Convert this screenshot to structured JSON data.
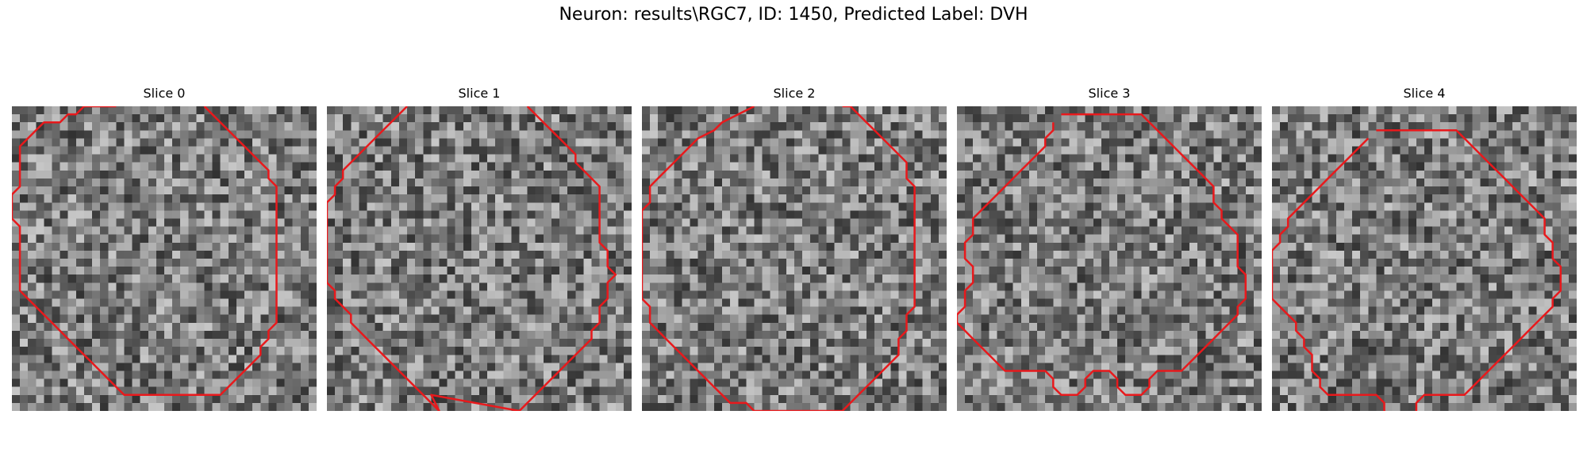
{
  "figure": {
    "title": "Neuron: results\\RGC7, ID: 1450, Predicted Label: DVH"
  },
  "panels": [
    {
      "title": "Slice 0",
      "seed": 11,
      "contour": [
        [
          13,
          0
        ],
        [
          9,
          0
        ],
        [
          8,
          1
        ],
        [
          7,
          1
        ],
        [
          6,
          2
        ],
        [
          4,
          2
        ],
        [
          3,
          3
        ],
        [
          2,
          4
        ],
        [
          1,
          5
        ],
        [
          1,
          10
        ],
        [
          0,
          11
        ],
        [
          0,
          14
        ],
        [
          1,
          15
        ],
        [
          1,
          23
        ],
        [
          2,
          24
        ],
        [
          3,
          25
        ],
        [
          4,
          26
        ],
        [
          5,
          27
        ],
        [
          6,
          28
        ],
        [
          7,
          29
        ],
        [
          8,
          30
        ],
        [
          9,
          31
        ],
        [
          10,
          32
        ],
        [
          11,
          33
        ],
        [
          12,
          34
        ],
        [
          13,
          35
        ],
        [
          14,
          36
        ],
        [
          26,
          36
        ],
        [
          27,
          35
        ],
        [
          28,
          34
        ],
        [
          29,
          33
        ],
        [
          30,
          32
        ],
        [
          31,
          31
        ],
        [
          31,
          30
        ],
        [
          32,
          29
        ],
        [
          32,
          28
        ],
        [
          33,
          27
        ],
        [
          33,
          10
        ],
        [
          32,
          9
        ],
        [
          32,
          8
        ],
        [
          31,
          7
        ],
        [
          30,
          6
        ],
        [
          29,
          5
        ],
        [
          28,
          4
        ],
        [
          27,
          3
        ],
        [
          26,
          2
        ],
        [
          25,
          1
        ],
        [
          24,
          0
        ]
      ]
    },
    {
      "title": "Slice 1",
      "seed": 23,
      "contour": [
        [
          10,
          0
        ],
        [
          9,
          1
        ],
        [
          8,
          2
        ],
        [
          7,
          3
        ],
        [
          6,
          4
        ],
        [
          5,
          5
        ],
        [
          4,
          6
        ],
        [
          3,
          7
        ],
        [
          2,
          8
        ],
        [
          2,
          9
        ],
        [
          1,
          10
        ],
        [
          1,
          11
        ],
        [
          0,
          12
        ],
        [
          0,
          22
        ],
        [
          1,
          23
        ],
        [
          1,
          24
        ],
        [
          2,
          25
        ],
        [
          3,
          26
        ],
        [
          3,
          27
        ],
        [
          4,
          28
        ],
        [
          5,
          29
        ],
        [
          6,
          30
        ],
        [
          7,
          31
        ],
        [
          8,
          32
        ],
        [
          9,
          33
        ],
        [
          10,
          34
        ],
        [
          11,
          35
        ],
        [
          12,
          36
        ],
        [
          13,
          37
        ],
        [
          14,
          38
        ],
        [
          13,
          36
        ],
        [
          24,
          38
        ],
        [
          25,
          37
        ],
        [
          26,
          36
        ],
        [
          27,
          35
        ],
        [
          28,
          34
        ],
        [
          29,
          33
        ],
        [
          30,
          32
        ],
        [
          31,
          31
        ],
        [
          32,
          30
        ],
        [
          33,
          29
        ],
        [
          33,
          28
        ],
        [
          34,
          27
        ],
        [
          34,
          25
        ],
        [
          35,
          24
        ],
        [
          35,
          22
        ],
        [
          36,
          21
        ],
        [
          35,
          20
        ],
        [
          35,
          18
        ],
        [
          34,
          17
        ],
        [
          34,
          10
        ],
        [
          33,
          9
        ],
        [
          32,
          8
        ],
        [
          31,
          7
        ],
        [
          31,
          6
        ],
        [
          30,
          5
        ],
        [
          29,
          4
        ],
        [
          28,
          3
        ],
        [
          27,
          2
        ],
        [
          26,
          1
        ],
        [
          25,
          0
        ]
      ]
    },
    {
      "title": "Slice 2",
      "seed": 37,
      "contour": [
        [
          14,
          0
        ],
        [
          12,
          1
        ],
        [
          10,
          2
        ],
        [
          9,
          3
        ],
        [
          7,
          4
        ],
        [
          6,
          5
        ],
        [
          5,
          6
        ],
        [
          4,
          7
        ],
        [
          3,
          8
        ],
        [
          2,
          9
        ],
        [
          1,
          10
        ],
        [
          1,
          12
        ],
        [
          0,
          13
        ],
        [
          0,
          24
        ],
        [
          1,
          25
        ],
        [
          1,
          27
        ],
        [
          2,
          28
        ],
        [
          3,
          29
        ],
        [
          4,
          30
        ],
        [
          5,
          31
        ],
        [
          6,
          32
        ],
        [
          7,
          33
        ],
        [
          8,
          34
        ],
        [
          9,
          35
        ],
        [
          10,
          36
        ],
        [
          11,
          37
        ],
        [
          13,
          37
        ],
        [
          14,
          38
        ],
        [
          25,
          38
        ],
        [
          26,
          37
        ],
        [
          27,
          36
        ],
        [
          28,
          35
        ],
        [
          29,
          34
        ],
        [
          30,
          33
        ],
        [
          31,
          32
        ],
        [
          32,
          31
        ],
        [
          32,
          29
        ],
        [
          33,
          28
        ],
        [
          33,
          26
        ],
        [
          34,
          25
        ],
        [
          34,
          10
        ],
        [
          33,
          9
        ],
        [
          33,
          7
        ],
        [
          32,
          6
        ],
        [
          31,
          5
        ],
        [
          30,
          4
        ],
        [
          29,
          3
        ],
        [
          28,
          2
        ],
        [
          27,
          1
        ],
        [
          26,
          0
        ],
        [
          25,
          0
        ]
      ]
    },
    {
      "title": "Slice 3",
      "seed": 53,
      "contour": [
        [
          13,
          1
        ],
        [
          23,
          1
        ],
        [
          24,
          2
        ],
        [
          25,
          3
        ],
        [
          26,
          4
        ],
        [
          27,
          5
        ],
        [
          28,
          6
        ],
        [
          29,
          7
        ],
        [
          30,
          8
        ],
        [
          31,
          9
        ],
        [
          32,
          10
        ],
        [
          32,
          12
        ],
        [
          33,
          13
        ],
        [
          33,
          14
        ],
        [
          34,
          15
        ],
        [
          35,
          16
        ],
        [
          35,
          20
        ],
        [
          36,
          21
        ],
        [
          36,
          24
        ],
        [
          35,
          25
        ],
        [
          35,
          26
        ],
        [
          34,
          27
        ],
        [
          33,
          28
        ],
        [
          32,
          29
        ],
        [
          31,
          30
        ],
        [
          30,
          31
        ],
        [
          29,
          32
        ],
        [
          28,
          33
        ],
        [
          25,
          33
        ],
        [
          24,
          34
        ],
        [
          24,
          35
        ],
        [
          23,
          36
        ],
        [
          21,
          36
        ],
        [
          20,
          35
        ],
        [
          20,
          34
        ],
        [
          19,
          33
        ],
        [
          17,
          33
        ],
        [
          16,
          34
        ],
        [
          16,
          35
        ],
        [
          15,
          36
        ],
        [
          13,
          36
        ],
        [
          12,
          35
        ],
        [
          12,
          34
        ],
        [
          11,
          33
        ],
        [
          6,
          33
        ],
        [
          5,
          32
        ],
        [
          4,
          31
        ],
        [
          3,
          30
        ],
        [
          2,
          29
        ],
        [
          1,
          28
        ],
        [
          0,
          27
        ],
        [
          0,
          26
        ],
        [
          1,
          25
        ],
        [
          1,
          23
        ],
        [
          2,
          22
        ],
        [
          2,
          20
        ],
        [
          1,
          19
        ],
        [
          1,
          17
        ],
        [
          2,
          16
        ],
        [
          2,
          14
        ],
        [
          3,
          13
        ],
        [
          4,
          12
        ],
        [
          5,
          11
        ],
        [
          6,
          10
        ],
        [
          7,
          9
        ],
        [
          8,
          8
        ],
        [
          9,
          7
        ],
        [
          10,
          6
        ],
        [
          11,
          5
        ],
        [
          11,
          4
        ],
        [
          12,
          3
        ],
        [
          12,
          2
        ]
      ]
    },
    {
      "title": "Slice 4",
      "seed": 71,
      "contour": [
        [
          13,
          3
        ],
        [
          23,
          3
        ],
        [
          24,
          4
        ],
        [
          25,
          5
        ],
        [
          26,
          6
        ],
        [
          27,
          7
        ],
        [
          28,
          8
        ],
        [
          29,
          9
        ],
        [
          30,
          10
        ],
        [
          31,
          11
        ],
        [
          32,
          12
        ],
        [
          33,
          13
        ],
        [
          34,
          14
        ],
        [
          34,
          16
        ],
        [
          35,
          17
        ],
        [
          35,
          19
        ],
        [
          36,
          20
        ],
        [
          36,
          23
        ],
        [
          35,
          24
        ],
        [
          35,
          25
        ],
        [
          34,
          26
        ],
        [
          33,
          27
        ],
        [
          32,
          28
        ],
        [
          31,
          29
        ],
        [
          30,
          30
        ],
        [
          29,
          31
        ],
        [
          28,
          32
        ],
        [
          27,
          33
        ],
        [
          26,
          34
        ],
        [
          25,
          35
        ],
        [
          24,
          36
        ],
        [
          19,
          36
        ],
        [
          18,
          37
        ],
        [
          18,
          38
        ],
        [
          17,
          39
        ],
        [
          15,
          39
        ],
        [
          14,
          38
        ],
        [
          14,
          37
        ],
        [
          13,
          36
        ],
        [
          7,
          36
        ],
        [
          6,
          35
        ],
        [
          6,
          34
        ],
        [
          5,
          33
        ],
        [
          5,
          31
        ],
        [
          4,
          30
        ],
        [
          4,
          29
        ],
        [
          3,
          28
        ],
        [
          3,
          27
        ],
        [
          2,
          26
        ],
        [
          1,
          25
        ],
        [
          0,
          24
        ],
        [
          0,
          18
        ],
        [
          1,
          17
        ],
        [
          1,
          16
        ],
        [
          2,
          15
        ],
        [
          2,
          14
        ],
        [
          3,
          13
        ],
        [
          4,
          12
        ],
        [
          5,
          11
        ],
        [
          6,
          10
        ],
        [
          7,
          9
        ],
        [
          8,
          8
        ],
        [
          9,
          7
        ],
        [
          10,
          6
        ],
        [
          11,
          5
        ],
        [
          12,
          4
        ]
      ]
    }
  ]
}
